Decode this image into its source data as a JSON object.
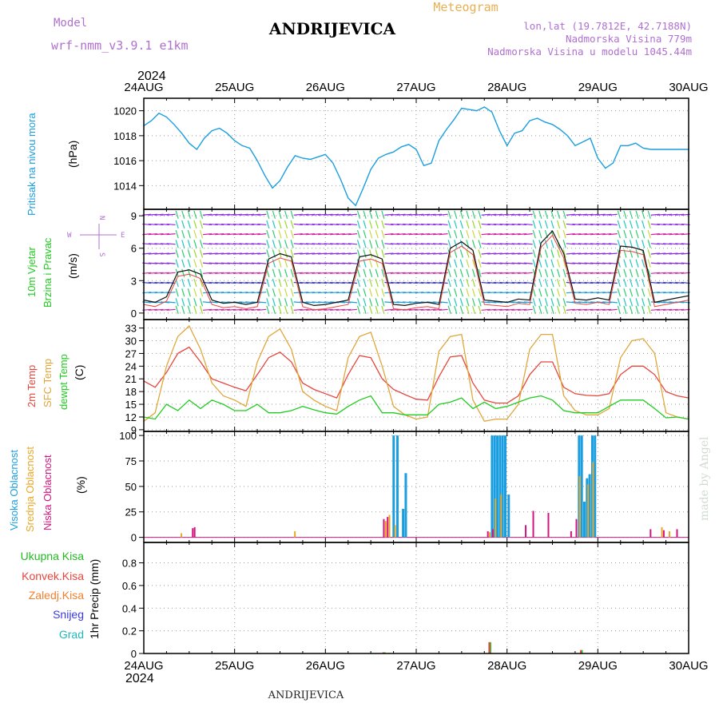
{
  "header": {
    "model_label": "Model",
    "model_name": "wrf-nmm_v3.9.1 e1km",
    "station": "ANDRIJEVICA",
    "kind": "Meteogram",
    "lonlat": "lon,lat (19.7812E, 42.7188N)",
    "elev": "Nadmorska Visina 779m",
    "elev_model": "Nadmorska Visina u modelu 1045.44m",
    "credit": "made by Angel",
    "footer_station": "ANDRIJEVICA"
  },
  "time_axis": {
    "year": "2024",
    "labels": [
      "24AUG",
      "25AUG",
      "26AUG",
      "27AUG",
      "28AUG",
      "29AUG",
      "30AUG"
    ],
    "range_hours": [
      0,
      144
    ]
  },
  "colors": {
    "pressure": "#1a9ee0",
    "temp2m": "#e8453c",
    "sfc": "#e0a73a",
    "dew": "#1fcc1f",
    "high": "#1a9ee0",
    "mid": "#e8a825",
    "low": "#d4147e",
    "total": "#22bb22",
    "convective": "#e8453c",
    "frozen": "#f08030",
    "snow": "#3a3ae0",
    "hail": "#20b8b8",
    "title": "#b070d0"
  },
  "panels": {
    "pressure": {
      "labels": [
        "Pritisak na nivou mora",
        "(hPa)"
      ],
      "yticks": [
        1014,
        1016,
        1018,
        1020
      ],
      "ylim": [
        1012.1,
        1021
      ]
    },
    "wind": {
      "labels": [
        "10m Vjetar",
        "Brzina i Pravac",
        "(m/s)"
      ],
      "yticks": [
        0,
        3,
        6,
        9
      ],
      "ylim": [
        -0.6,
        9.6
      ],
      "compass": {
        "n": "N",
        "s": "S",
        "w": "W",
        "e": "E"
      }
    },
    "temp": {
      "labels": [
        "2m Temp",
        "SFC Temp",
        "dewpt Temp",
        "(C)"
      ],
      "yticks": [
        9,
        12,
        15,
        18,
        21,
        24,
        27,
        30,
        33
      ],
      "ylim": [
        8.6,
        35
      ]
    },
    "cloud": {
      "labels": [
        "Visoka Oblacnost",
        "Srednja Oblacnost",
        "Niska Oblacnost",
        "(%)"
      ],
      "yticks": [
        0,
        25,
        50,
        75,
        100
      ],
      "ylim": [
        -5,
        104
      ]
    },
    "precip": {
      "labels": [
        "Ukupna Kisa",
        "Konvek.Kisa",
        "Zaledj.Kisa",
        "Snijeg",
        "Grad",
        "1hr Precip (mm)"
      ],
      "yticks": [
        0,
        0.2,
        0.4,
        0.6,
        0.8
      ],
      "ylim": [
        0,
        0.98
      ]
    }
  },
  "chart_data": [
    {
      "type": "line",
      "name": "pressure",
      "x": [
        0,
        2,
        4,
        6,
        8,
        10,
        12,
        14,
        16,
        18,
        20,
        22,
        24,
        26,
        28,
        30,
        32,
        34,
        36,
        38,
        40,
        42,
        44,
        46,
        48,
        50,
        52,
        54,
        56,
        58,
        60,
        62,
        64,
        66,
        68,
        70,
        72,
        74,
        76,
        78,
        80,
        82,
        84,
        86,
        88,
        90,
        92,
        94,
        96,
        98,
        100,
        102,
        104,
        106,
        108,
        110,
        112,
        114,
        116,
        118,
        120,
        122,
        124,
        126,
        128,
        130,
        132,
        134,
        136,
        138,
        140,
        142,
        144
      ],
      "values": [
        1018.8,
        1019.2,
        1019.8,
        1019.5,
        1018.9,
        1018.2,
        1017.4,
        1016.9,
        1017.8,
        1018.4,
        1018.6,
        1018.2,
        1017.6,
        1017.2,
        1017.0,
        1016.0,
        1014.8,
        1013.8,
        1014.4,
        1015.5,
        1016.4,
        1016.2,
        1016.1,
        1016.3,
        1016.5,
        1015.8,
        1014.5,
        1013.0,
        1012.4,
        1013.8,
        1015.3,
        1016.2,
        1016.5,
        1016.7,
        1017.1,
        1017.3,
        1016.9,
        1015.6,
        1015.8,
        1017.6,
        1018.5,
        1019.3,
        1020.2,
        1020.1,
        1020.0,
        1020.3,
        1019.9,
        1018.4,
        1017.2,
        1018.2,
        1018.4,
        1019.2,
        1019.4,
        1019.1,
        1018.9,
        1018.5,
        1018.0,
        1017.2,
        1017.5,
        1017.8,
        1016.2,
        1015.4,
        1015.8,
        1017.2,
        1017.2,
        1017.4,
        1017.0,
        1016.9,
        1016.9,
        1016.9,
        1016.9,
        1016.9,
        1016.9
      ]
    },
    {
      "type": "line",
      "name": "wind",
      "x": [
        0,
        3,
        6,
        9,
        12,
        15,
        18,
        21,
        24,
        27,
        30,
        33,
        36,
        39,
        42,
        45,
        48,
        51,
        54,
        57,
        60,
        63,
        66,
        69,
        72,
        75,
        78,
        81,
        84,
        87,
        90,
        93,
        96,
        99,
        102,
        105,
        108,
        111,
        114,
        117,
        120,
        123,
        126,
        129,
        132,
        135,
        138,
        141,
        144
      ],
      "values": [
        1.2,
        1.0,
        1.5,
        3.8,
        4.0,
        3.6,
        1.2,
        0.9,
        1.0,
        0.8,
        1.0,
        5.0,
        5.5,
        5.2,
        1.0,
        0.7,
        0.8,
        1.0,
        1.2,
        5.2,
        5.4,
        5.0,
        0.8,
        0.7,
        0.9,
        1.0,
        0.8,
        6.0,
        6.6,
        5.8,
        1.2,
        1.1,
        1.0,
        1.3,
        1.2,
        6.5,
        7.6,
        5.5,
        1.3,
        1.2,
        1.4,
        1.2,
        6.2,
        6.1,
        5.8,
        1.0,
        1.2,
        1.4,
        1.6
      ]
    },
    {
      "type": "line",
      "name": "temperature",
      "x": [
        0,
        3,
        6,
        9,
        12,
        15,
        18,
        21,
        24,
        27,
        30,
        33,
        36,
        39,
        42,
        45,
        48,
        51,
        54,
        57,
        60,
        63,
        66,
        69,
        72,
        75,
        78,
        81,
        84,
        87,
        90,
        93,
        96,
        99,
        102,
        105,
        108,
        111,
        114,
        117,
        120,
        123,
        126,
        129,
        132,
        135,
        138,
        141,
        144
      ],
      "series": [
        {
          "name": "2m Temp",
          "values": [
            20.5,
            19,
            22.5,
            27,
            28.5,
            25,
            21,
            20,
            19,
            18.2,
            22,
            26,
            27.3,
            25,
            20,
            18.5,
            17.5,
            16.5,
            22,
            26.5,
            26,
            21,
            18.5,
            17.3,
            16.2,
            16,
            21.5,
            26.2,
            26.5,
            20,
            16,
            15.3,
            15.3,
            17,
            22,
            25,
            25,
            19,
            17.5,
            17.1,
            17,
            17.5,
            22,
            24,
            24,
            22,
            18,
            17,
            16.5
          ]
        },
        {
          "name": "SFC Temp",
          "values": [
            11,
            13,
            24,
            31,
            33.5,
            28,
            20,
            17,
            16,
            14.5,
            25,
            31,
            32.8,
            28,
            18,
            16,
            14.5,
            13.5,
            26,
            31,
            32,
            24,
            14.5,
            12.5,
            11.5,
            12,
            27.5,
            31,
            31.5,
            16,
            11,
            11.5,
            11.5,
            15,
            28,
            31.5,
            31.5,
            17,
            13.5,
            12.5,
            12.5,
            14,
            26,
            30,
            30.5,
            27,
            13,
            12,
            11.5
          ]
        },
        {
          "name": "dewpt Temp",
          "values": [
            12,
            11.5,
            15,
            13.5,
            16,
            14,
            16,
            15,
            13.5,
            13.5,
            15,
            13,
            13,
            13.5,
            14.5,
            13.7,
            13,
            12.7,
            14.5,
            16,
            17,
            13,
            13,
            12.5,
            12.5,
            12.5,
            15,
            15.5,
            16.5,
            14,
            15.5,
            14,
            14.5,
            15.5,
            16.5,
            17,
            16,
            13.5,
            13,
            13,
            13,
            14.5,
            16,
            16,
            16,
            14,
            11.8,
            12,
            11.5
          ]
        }
      ]
    },
    {
      "type": "bar",
      "name": "cloud",
      "series": [
        {
          "name": "Visoka Oblacnost",
          "bars": [
            [
              66,
              100
            ],
            [
              67,
              100
            ],
            [
              68.5,
              28
            ],
            [
              69.2,
              63
            ],
            [
              92,
              100
            ],
            [
              92.7,
              100
            ],
            [
              93.4,
              100
            ],
            [
              94.1,
              100
            ],
            [
              94.8,
              100
            ],
            [
              95.5,
              100
            ],
            [
              96.4,
              42
            ],
            [
              115,
              100
            ],
            [
              115.7,
              100
            ],
            [
              116.4,
              35
            ],
            [
              117.1,
              58
            ],
            [
              117.8,
              62
            ],
            [
              118.5,
              100
            ],
            [
              119.2,
              100
            ]
          ]
        },
        {
          "name": "Srednja Oblacnost",
          "bars": [
            [
              10,
              4
            ],
            [
              40,
              6
            ],
            [
              64,
              16
            ],
            [
              65,
              22
            ],
            [
              66.5,
              12
            ],
            [
              91.5,
              5
            ],
            [
              93,
              38
            ],
            [
              94.5,
              42
            ],
            [
              115.3,
              60
            ],
            [
              117.5,
              52
            ],
            [
              118.8,
              74
            ],
            [
              137,
              10
            ],
            [
              139,
              6
            ]
          ]
        },
        {
          "name": "Niska Oblacnost",
          "bars": [
            [
              13,
              9
            ],
            [
              13.5,
              10
            ],
            [
              63.5,
              18
            ],
            [
              64.5,
              20
            ],
            [
              91,
              6
            ],
            [
              92.3,
              8
            ],
            [
              101,
              12
            ],
            [
              103,
              26
            ],
            [
              107,
              24
            ],
            [
              113,
              6
            ],
            [
              114.4,
              18
            ],
            [
              134,
              8
            ],
            [
              137.5,
              7
            ],
            [
              141,
              8
            ]
          ]
        }
      ]
    },
    {
      "type": "bar",
      "name": "precip",
      "series": [
        {
          "name": "Ukupna Kisa",
          "bars": [
            [
              63.7,
              0.01
            ],
            [
              91.6,
              0.1
            ],
            [
              115.8,
              0.03
            ]
          ]
        },
        {
          "name": "Konvek.Kisa",
          "bars": [
            [
              63.3,
              0.01
            ],
            [
              91.3,
              0.1
            ],
            [
              115.5,
              0.03
            ]
          ]
        },
        {
          "name": "Zaledj.Kisa",
          "bars": [
            [
              65,
              0.005
            ]
          ]
        },
        {
          "name": "Snijeg",
          "bars": []
        },
        {
          "name": "Grad",
          "bars": []
        }
      ]
    }
  ]
}
